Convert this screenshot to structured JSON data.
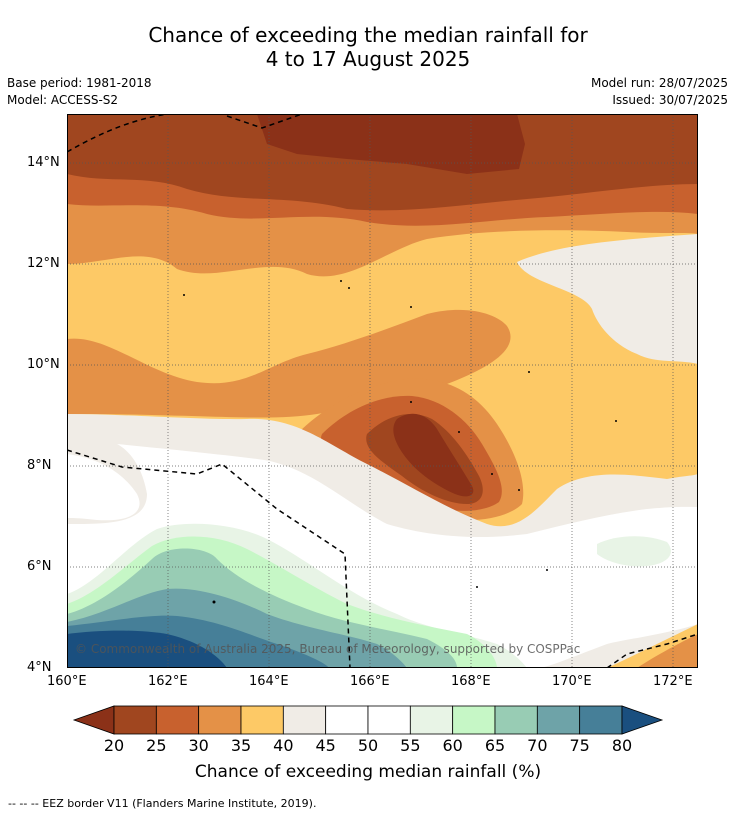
{
  "title_line1": "Chance of exceeding the median rainfall for",
  "title_line2": "4 to 17 August 2025",
  "meta": {
    "base_period": "Base period: 1981-2018",
    "model": "Model: ACCESS-S2",
    "model_run": "Model run: 28/07/2025",
    "issued": "Issued: 30/07/2025"
  },
  "map": {
    "lat_ticks": [
      "14°N",
      "12°N",
      "10°N",
      "8°N",
      "6°N",
      "4°N"
    ],
    "lon_ticks": [
      "160°E",
      "162°E",
      "164°E",
      "166°E",
      "168°E",
      "170°E",
      "172°E"
    ],
    "copyright": "© Commonwealth of Australia 2025, Bureau of Meteorology, supported by COSPPac"
  },
  "colorbar": {
    "ticks": [
      "20",
      "25",
      "30",
      "35",
      "40",
      "45",
      "50",
      "55",
      "60",
      "65",
      "70",
      "75",
      "80"
    ],
    "colors": [
      "#a0461f",
      "#c8612e",
      "#e49147",
      "#fdc966",
      "#f0ece6",
      "#ffffff",
      "#ffffff",
      "#e8f4e6",
      "#c6f7c6",
      "#98ccb4",
      "#6ea3a8",
      "#467f98"
    ],
    "low_color": "#8b3118",
    "high_color": "#1a4f7f",
    "label": "Chance of exceeding median rainfall (%)"
  },
  "footer": "-- -- -- EEZ border V11 (Flanders Marine Institute, 2019)."
}
